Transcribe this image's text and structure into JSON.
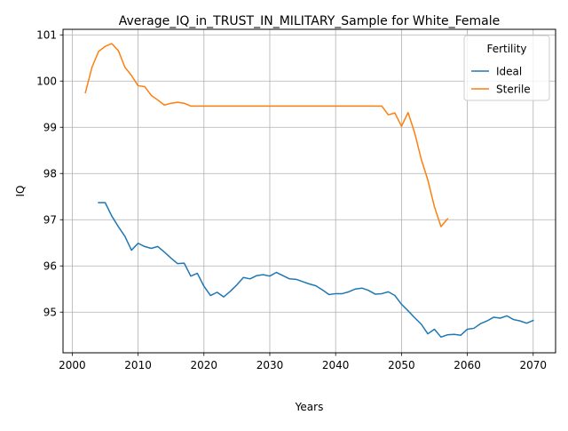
{
  "chart_data": {
    "type": "line",
    "title": "Average_IQ_in_TRUST_IN_MILITARY_Sample for White_Female",
    "xlabel": "Years",
    "ylabel": "IQ",
    "xlim": [
      1998.6,
      2073.4
    ],
    "ylim": [
      94.12,
      101.12
    ],
    "xticks": [
      2000,
      2010,
      2020,
      2030,
      2040,
      2050,
      2060,
      2070
    ],
    "yticks": [
      95,
      96,
      97,
      98,
      99,
      100,
      101
    ],
    "grid": true,
    "legend": {
      "title": "Fertility",
      "placement": "top-right"
    },
    "series": [
      {
        "name": "Ideal",
        "color": "#1f77b4",
        "x": [
          2004,
          2005,
          2006,
          2007,
          2008,
          2009,
          2010,
          2011,
          2012,
          2013,
          2014,
          2015,
          2016,
          2017,
          2018,
          2019,
          2020,
          2021,
          2022,
          2023,
          2024,
          2025,
          2026,
          2027,
          2028,
          2029,
          2030,
          2031,
          2032,
          2033,
          2034,
          2035,
          2036,
          2037,
          2038,
          2039,
          2040,
          2041,
          2042,
          2043,
          2044,
          2045,
          2046,
          2047,
          2048,
          2049,
          2050,
          2051,
          2052,
          2053,
          2054,
          2055,
          2056,
          2057,
          2058,
          2059,
          2060,
          2061,
          2062,
          2063,
          2064,
          2065,
          2066,
          2067,
          2068,
          2069,
          2070
        ],
        "y": [
          97.37,
          97.37,
          97.08,
          96.85,
          96.64,
          96.34,
          96.49,
          96.42,
          96.38,
          96.42,
          96.3,
          96.17,
          96.05,
          96.06,
          95.78,
          95.84,
          95.56,
          95.36,
          95.43,
          95.33,
          95.45,
          95.59,
          95.75,
          95.72,
          95.79,
          95.81,
          95.78,
          95.86,
          95.79,
          95.72,
          95.71,
          95.66,
          95.61,
          95.57,
          95.48,
          95.38,
          95.4,
          95.4,
          95.44,
          95.5,
          95.52,
          95.47,
          95.39,
          95.4,
          95.44,
          95.36,
          95.17,
          95.03,
          94.88,
          94.74,
          94.53,
          94.63,
          94.46,
          94.51,
          94.52,
          94.5,
          94.63,
          94.65,
          94.75,
          94.81,
          94.89,
          94.87,
          94.92,
          94.84,
          94.81,
          94.76,
          94.82
        ]
      },
      {
        "name": "Sterile",
        "color": "#ff7f0e",
        "x": [
          2002,
          2003,
          2004,
          2005,
          2006,
          2007,
          2008,
          2009,
          2010,
          2011,
          2012,
          2013,
          2014,
          2015,
          2016,
          2017,
          2018,
          2019,
          2020,
          2021,
          2022,
          2023,
          2024,
          2025,
          2026,
          2027,
          2028,
          2029,
          2030,
          2031,
          2032,
          2033,
          2034,
          2035,
          2036,
          2037,
          2038,
          2039,
          2040,
          2041,
          2042,
          2043,
          2044,
          2045,
          2046,
          2047,
          2048,
          2049,
          2050,
          2051,
          2052,
          2053,
          2054,
          2055,
          2056,
          2057
        ],
        "y": [
          99.75,
          100.3,
          100.64,
          100.75,
          100.81,
          100.66,
          100.3,
          100.12,
          99.9,
          99.88,
          99.69,
          99.59,
          99.48,
          99.52,
          99.54,
          99.52,
          99.46,
          99.46,
          99.46,
          99.46,
          99.46,
          99.46,
          99.46,
          99.46,
          99.46,
          99.46,
          99.46,
          99.46,
          99.46,
          99.46,
          99.46,
          99.46,
          99.46,
          99.46,
          99.46,
          99.46,
          99.46,
          99.46,
          99.46,
          99.46,
          99.46,
          99.46,
          99.46,
          99.46,
          99.46,
          99.46,
          99.27,
          99.31,
          99.02,
          99.32,
          98.88,
          98.31,
          97.86,
          97.28,
          96.85,
          97.02
        ]
      }
    ]
  }
}
